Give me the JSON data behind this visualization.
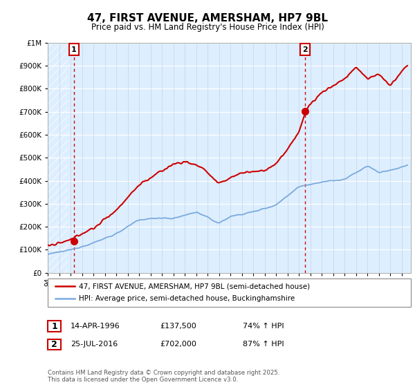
{
  "title": "47, FIRST AVENUE, AMERSHAM, HP7 9BL",
  "subtitle": "Price paid vs. HM Land Registry's House Price Index (HPI)",
  "legend_line1": "47, FIRST AVENUE, AMERSHAM, HP7 9BL (semi-detached house)",
  "legend_line2": "HPI: Average price, semi-detached house, Buckinghamshire",
  "annotation1_date": "14-APR-1996",
  "annotation1_price": "£137,500",
  "annotation1_hpi": "74% ↑ HPI",
  "annotation2_date": "25-JUL-2016",
  "annotation2_price": "£702,000",
  "annotation2_hpi": "87% ↑ HPI",
  "footer": "Contains HM Land Registry data © Crown copyright and database right 2025.\nThis data is licensed under the Open Government Licence v3.0.",
  "sale1_year": 1996.29,
  "sale1_price": 137500,
  "sale2_year": 2016.56,
  "sale2_price": 702000,
  "ylim": [
    0,
    1000000
  ],
  "xlim": [
    1994.0,
    2025.8
  ],
  "plot_color_red": "#cc0000",
  "plot_color_blue": "#7aaadd",
  "bg_color": "#ddeeff",
  "hatch_color": "#c8d8ee",
  "annotation_box_color": "#cc0000",
  "grid_color": "#c8d4e0",
  "white_grid": "#ffffff"
}
